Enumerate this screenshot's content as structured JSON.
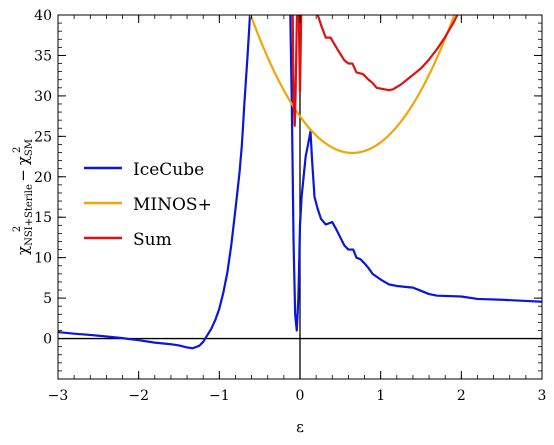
{
  "chart_data": {
    "type": "line",
    "xlabel": "ε",
    "ylabel": {
      "chi": "χ",
      "sup": "2",
      "sub1": "NSI+Sterile",
      "minus": "−",
      "sub2": "SM"
    },
    "xlim": [
      -3,
      3
    ],
    "ylim": [
      -5,
      40
    ],
    "xticks": [
      -3,
      -2,
      -1,
      0,
      1,
      2,
      3
    ],
    "yticks": [
      0,
      5,
      10,
      15,
      20,
      25,
      30,
      35,
      40
    ],
    "xtick_labels": [
      "−3",
      "−2",
      "−1",
      "0",
      "1",
      "2",
      "3"
    ],
    "ytick_labels": [
      "0",
      "5",
      "10",
      "15",
      "20",
      "25",
      "30",
      "35",
      "40"
    ],
    "legend_position": "center-left",
    "reference_lines": [
      {
        "axis": "y",
        "value": 0,
        "color": "#000000"
      },
      {
        "axis": "x",
        "value": 0,
        "color": "#000000"
      }
    ],
    "series": [
      {
        "name": "IceCube",
        "color": "#0a16d8",
        "points": [
          [
            -3.0,
            0.8
          ],
          [
            -2.8,
            0.6
          ],
          [
            -2.6,
            0.45
          ],
          [
            -2.4,
            0.25
          ],
          [
            -2.2,
            0.05
          ],
          [
            -2.0,
            -0.2
          ],
          [
            -1.8,
            -0.5
          ],
          [
            -1.6,
            -0.7
          ],
          [
            -1.5,
            -0.85
          ],
          [
            -1.4,
            -1.1
          ],
          [
            -1.33,
            -1.2
          ],
          [
            -1.25,
            -0.9
          ],
          [
            -1.2,
            -0.4
          ],
          [
            -1.15,
            0.4
          ],
          [
            -1.1,
            1.2
          ],
          [
            -1.05,
            2.3
          ],
          [
            -1.0,
            3.7
          ],
          [
            -0.95,
            5.7
          ],
          [
            -0.9,
            8.2
          ],
          [
            -0.85,
            11.7
          ],
          [
            -0.8,
            16.0
          ],
          [
            -0.75,
            20.5
          ],
          [
            -0.72,
            24.0
          ],
          [
            -0.69,
            29.0
          ],
          [
            -0.65,
            35.0
          ],
          [
            -0.62,
            40.0
          ]
        ],
        "points_segment2": [
          [
            -0.12,
            40.0
          ],
          [
            -0.1,
            28.0
          ],
          [
            -0.08,
            12.0
          ],
          [
            -0.06,
            3.0
          ],
          [
            -0.04,
            1.0
          ],
          [
            -0.02,
            5.0
          ],
          [
            0.0,
            14.0
          ],
          [
            0.02,
            17.5
          ],
          [
            0.05,
            20.5
          ],
          [
            0.07,
            22.5
          ],
          [
            0.1,
            24.0
          ],
          [
            0.13,
            25.6
          ],
          [
            0.15,
            22.0
          ],
          [
            0.18,
            17.5
          ],
          [
            0.22,
            16.0
          ],
          [
            0.26,
            14.8
          ],
          [
            0.32,
            14.1
          ],
          [
            0.4,
            14.4
          ],
          [
            0.45,
            13.5
          ],
          [
            0.5,
            12.5
          ],
          [
            0.55,
            11.5
          ],
          [
            0.6,
            11.0
          ],
          [
            0.66,
            11.0
          ],
          [
            0.7,
            10.0
          ],
          [
            0.75,
            9.8
          ],
          [
            0.8,
            9.3
          ],
          [
            0.85,
            8.7
          ],
          [
            0.9,
            8.0
          ],
          [
            1.0,
            7.3
          ],
          [
            1.1,
            6.7
          ],
          [
            1.2,
            6.5
          ],
          [
            1.4,
            6.3
          ],
          [
            1.5,
            5.9
          ],
          [
            1.6,
            5.5
          ],
          [
            1.7,
            5.3
          ],
          [
            2.0,
            5.2
          ],
          [
            2.2,
            4.9
          ],
          [
            2.5,
            4.8
          ],
          [
            2.8,
            4.65
          ],
          [
            3.0,
            4.55
          ]
        ]
      },
      {
        "name": "MINOS+",
        "color": "#f0a608",
        "curve": {
          "kind": "parabola",
          "min_x": 0.65,
          "min_y": 22.95,
          "curvature": 10.7
        }
      },
      {
        "name": "Sum",
        "color": "#e01010",
        "points": [
          [
            -0.09,
            40.0
          ],
          [
            -0.085,
            34.0
          ],
          [
            -0.075,
            28.5
          ],
          [
            -0.065,
            26.3
          ],
          [
            -0.055,
            30.0
          ],
          [
            -0.045,
            36.0
          ],
          [
            -0.038,
            40.0
          ]
        ],
        "points_segment2": [
          [
            -0.015,
            40.0
          ],
          [
            0.0,
            30.5
          ],
          [
            0.015,
            40.0
          ]
        ],
        "points_segment3": [
          [
            0.22,
            40.0
          ],
          [
            0.27,
            38.5
          ],
          [
            0.32,
            37.2
          ],
          [
            0.38,
            37.2
          ],
          [
            0.42,
            36.5
          ],
          [
            0.48,
            35.5
          ],
          [
            0.55,
            34.4
          ],
          [
            0.6,
            34.0
          ],
          [
            0.65,
            34.0
          ],
          [
            0.7,
            32.9
          ],
          [
            0.78,
            32.7
          ],
          [
            0.85,
            32.0
          ],
          [
            0.9,
            31.6
          ],
          [
            0.95,
            31.0
          ],
          [
            1.0,
            30.9
          ],
          [
            1.1,
            30.7
          ],
          [
            1.15,
            30.8
          ],
          [
            1.25,
            31.4
          ],
          [
            1.35,
            32.2
          ],
          [
            1.5,
            33.4
          ],
          [
            1.6,
            34.5
          ],
          [
            1.7,
            35.8
          ],
          [
            1.8,
            37.3
          ],
          [
            1.9,
            39.0
          ],
          [
            1.95,
            40.0
          ]
        ]
      }
    ]
  }
}
